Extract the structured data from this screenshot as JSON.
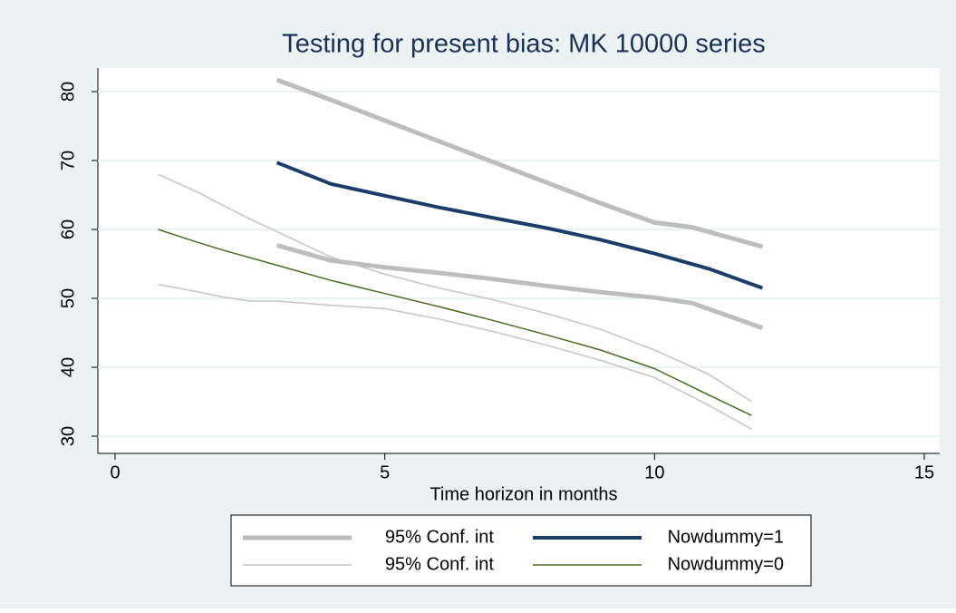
{
  "chart_data": {
    "type": "line",
    "title": "Testing for present bias: MK 10000 series",
    "x_label": "Time horizon in months",
    "xlim": [
      0,
      15
    ],
    "xticks": [
      0,
      5,
      10,
      15
    ],
    "ylim": [
      30,
      80
    ],
    "yticks": [
      30,
      40,
      50,
      60,
      70,
      80
    ],
    "grid": true,
    "legend": "bottom",
    "series": [
      {
        "name": "95% Conf. int",
        "color": "#bdbdbd",
        "width": 5,
        "x": [
          3,
          4,
          5,
          6,
          7,
          8,
          9,
          10,
          10.7,
          12
        ],
        "upper": [
          81.7,
          78.8,
          75.8,
          72.8,
          69.8,
          66.8,
          63.8,
          61,
          60.3,
          57.5
        ],
        "lower": [
          57.7,
          55.5,
          54.5,
          53.7,
          52.8,
          51.8,
          50.9,
          50.1,
          49.3,
          45.7
        ]
      },
      {
        "name": "Nowdummy=1",
        "color": "#1a3d6b",
        "width": 4,
        "x": [
          3,
          4,
          5,
          6,
          7,
          8,
          9,
          10,
          11,
          12
        ],
        "values": [
          69.7,
          66.6,
          64.9,
          63.2,
          61.7,
          60.2,
          58.5,
          56.5,
          54.3,
          51.5
        ]
      },
      {
        "name": "95% Conf. int",
        "color": "#c4c4c4",
        "width": 1.5,
        "x": [
          0.8,
          1.5,
          2,
          2.5,
          3,
          4,
          5,
          6,
          7,
          8,
          9,
          10,
          11,
          11.8
        ],
        "upper": [
          68,
          65.5,
          63.5,
          61.5,
          59.7,
          56,
          53.5,
          51.5,
          49.8,
          47.8,
          45.5,
          42.5,
          39,
          35
        ],
        "lower": [
          52,
          51,
          50.2,
          49.6,
          49.6,
          49,
          48.5,
          47,
          45.2,
          43.2,
          41,
          38.5,
          34.5,
          31
        ]
      },
      {
        "name": "Nowdummy=0",
        "color": "#4a6b1f",
        "width": 1.5,
        "x": [
          0.8,
          1.5,
          2,
          3,
          4,
          5,
          6,
          7,
          8,
          9,
          10,
          11,
          11.8
        ],
        "values": [
          60,
          58.2,
          57,
          54.8,
          52.6,
          50.7,
          48.8,
          46.8,
          44.7,
          42.5,
          39.8,
          36,
          33
        ]
      }
    ]
  }
}
